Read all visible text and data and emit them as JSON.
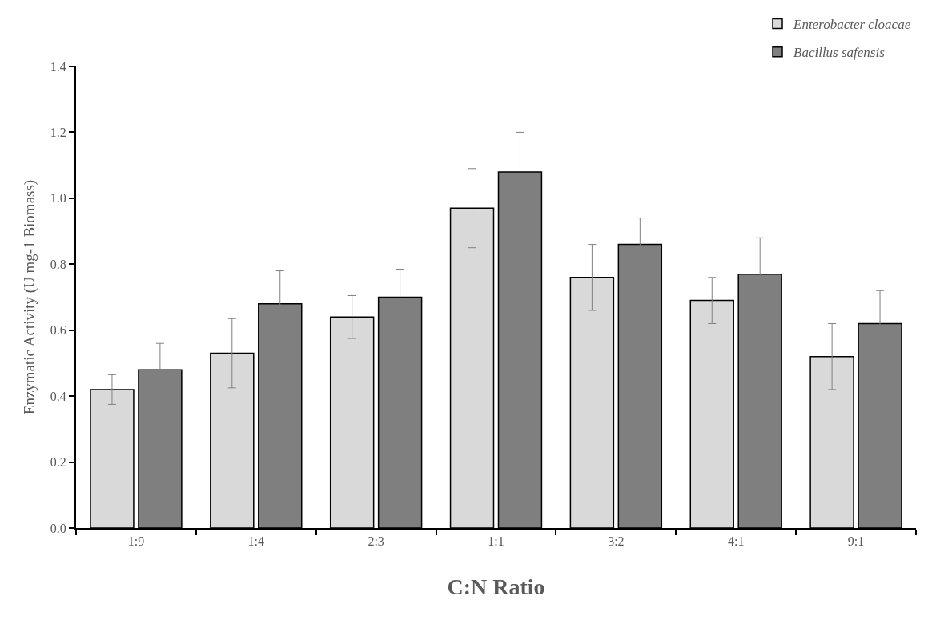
{
  "chart_data": {
    "type": "bar",
    "xlabel": "C:N Ratio",
    "ylabel": "Enzymatic Activity (U mg-1 Biomass)",
    "categories": [
      "1:9",
      "1:4",
      "2:3",
      "1:1",
      "3:2",
      "4:1",
      "9:1"
    ],
    "series": [
      {
        "name": "Enterobacter cloacae",
        "color": "#d9d9d9",
        "values": [
          0.42,
          0.53,
          0.64,
          0.97,
          0.76,
          0.69,
          0.52
        ],
        "errors": [
          0.045,
          0.105,
          0.065,
          0.12,
          0.1,
          0.07,
          0.1
        ]
      },
      {
        "name": "Bacillus safensis",
        "color": "#7f7f7f",
        "values": [
          0.48,
          0.68,
          0.7,
          1.08,
          0.86,
          0.77,
          0.62
        ],
        "errors": [
          0.08,
          0.1,
          0.085,
          0.12,
          0.08,
          0.11,
          0.1
        ]
      }
    ],
    "ylim": [
      0,
      1.4
    ],
    "yticks": [
      {
        "value": 0,
        "label": "0.0"
      },
      0.2,
      0.4,
      0.6,
      0.8,
      {
        "value": 1,
        "label": "1.0"
      },
      1.2,
      1.4
    ],
    "legend": "top right"
  }
}
